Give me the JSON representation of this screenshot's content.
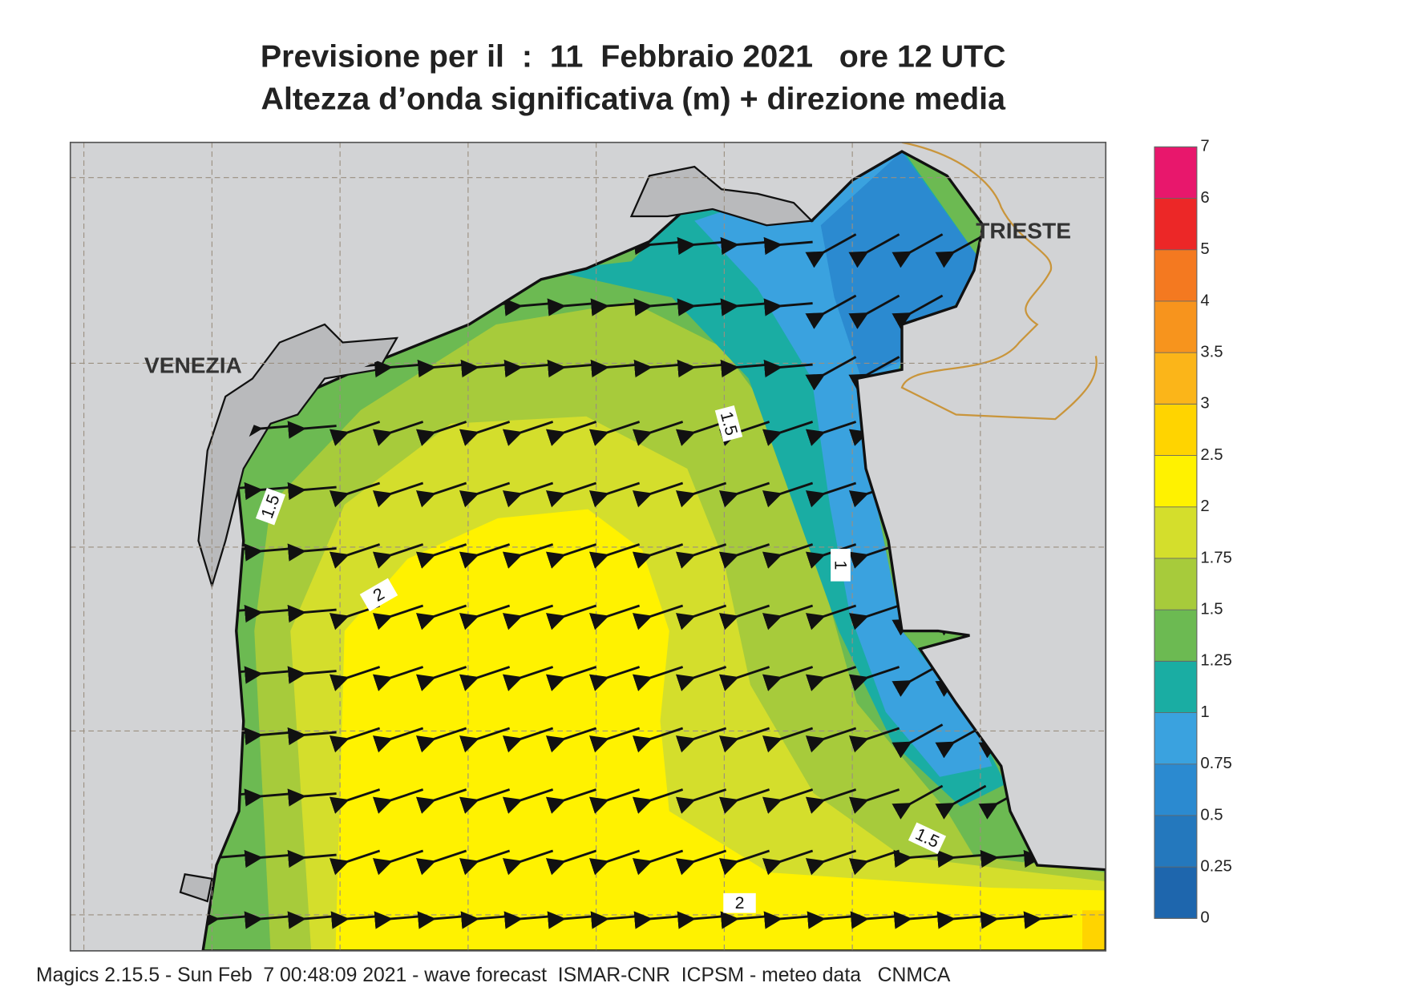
{
  "header": {
    "title": "Previsione per il  :  11  Febbraio 2021   ore 12 UTC",
    "subtitle": "Altezza d’onda significativa (m) + direzione media"
  },
  "map": {
    "places": [
      "VENEZIA",
      "TRIESTE"
    ],
    "contour_labels": [
      1.5,
      1.5,
      1.5,
      2,
      2,
      1
    ]
  },
  "legend": {
    "ticks": [
      0,
      0.25,
      0.5,
      0.75,
      1,
      1.25,
      1.5,
      1.75,
      2,
      2.5,
      3,
      3.5,
      4,
      5,
      6,
      7
    ],
    "colors": [
      "#1e66ad",
      "#2478bd",
      "#2b8ad0",
      "#3aa2df",
      "#1aada3",
      "#6cba52",
      "#a7cb3b",
      "#d4de2c",
      "#fff200",
      "#ffd400",
      "#fbb519",
      "#f7941d",
      "#f47920",
      "#ec2727",
      "#e8176c"
    ]
  },
  "footer": "Magics 2.15.5 - Sun Feb  7 00:48:09 2021 - wave forecast  ISMAR-CNR  ICPSM - meteo data   CNMCA"
}
